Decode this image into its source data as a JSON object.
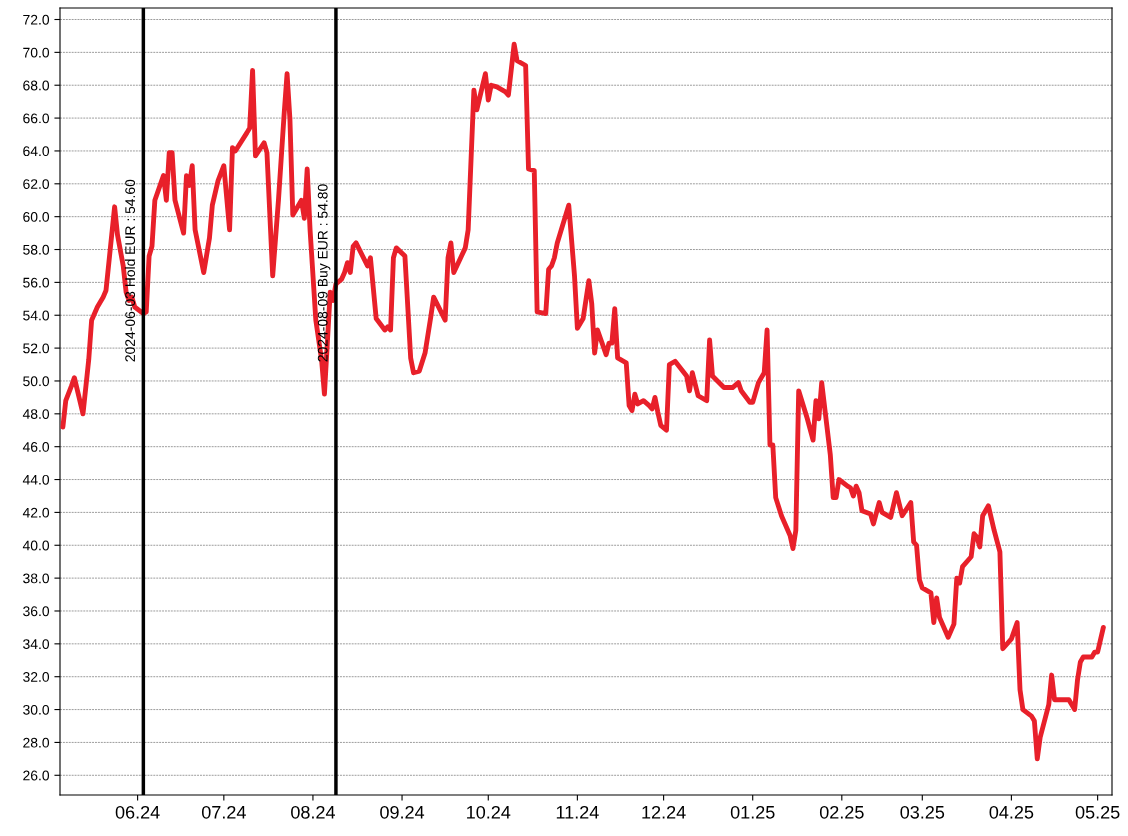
{
  "chart_data": {
    "type": "line",
    "x": [
      "2024-05-06",
      "2024-05-07",
      "2024-05-09",
      "2024-05-10",
      "2024-05-13",
      "2024-05-15",
      "2024-05-16",
      "2024-05-18",
      "2024-05-20",
      "2024-05-21",
      "2024-05-24",
      "2024-05-25",
      "2024-05-27",
      "2024-05-28",
      "2024-05-29",
      "2024-05-30",
      "2024-05-31",
      "2024-06-03",
      "2024-06-04",
      "2024-06-05",
      "2024-06-06",
      "2024-06-07",
      "2024-06-10",
      "2024-06-11",
      "2024-06-12",
      "2024-06-13",
      "2024-06-14",
      "2024-06-17",
      "2024-06-18",
      "2024-06-19",
      "2024-06-20",
      "2024-06-21",
      "2024-06-24",
      "2024-06-26",
      "2024-06-27",
      "2024-06-29",
      "2024-07-01",
      "2024-07-03",
      "2024-07-04",
      "2024-07-05",
      "2024-07-09",
      "2024-07-10",
      "2024-07-11",
      "2024-07-12",
      "2024-07-15",
      "2024-07-16",
      "2024-07-18",
      "2024-07-20",
      "2024-07-22",
      "2024-07-23",
      "2024-07-24",
      "2024-07-25",
      "2024-07-27",
      "2024-07-28",
      "2024-07-29",
      "2024-07-30",
      "2024-07-31",
      "2024-08-02",
      "2024-08-04",
      "2024-08-05",
      "2024-08-07",
      "2024-08-08",
      "2024-08-09",
      "2024-08-11",
      "2024-08-12",
      "2024-08-13",
      "2024-08-14",
      "2024-08-15",
      "2024-08-16",
      "2024-08-20",
      "2024-08-21",
      "2024-08-23",
      "2024-08-26",
      "2024-08-27",
      "2024-08-28",
      "2024-08-29",
      "2024-08-30",
      "2024-09-02",
      "2024-09-04",
      "2024-09-05",
      "2024-09-07",
      "2024-09-09",
      "2024-09-11",
      "2024-09-12",
      "2024-09-16",
      "2024-09-17",
      "2024-09-18",
      "2024-09-19",
      "2024-09-23",
      "2024-09-24",
      "2024-09-26",
      "2024-09-27",
      "2024-09-30",
      "2024-10-01",
      "2024-10-02",
      "2024-10-04",
      "2024-10-07",
      "2024-10-08",
      "2024-10-10",
      "2024-10-11",
      "2024-10-14",
      "2024-10-15",
      "2024-10-17",
      "2024-10-18",
      "2024-10-21",
      "2024-10-22",
      "2024-10-23",
      "2024-10-24",
      "2024-10-25",
      "2024-10-29",
      "2024-10-31",
      "2024-11-01",
      "2024-11-03",
      "2024-11-05",
      "2024-11-06",
      "2024-11-07",
      "2024-11-08",
      "2024-11-11",
      "2024-11-12",
      "2024-11-13",
      "2024-11-14",
      "2024-11-15",
      "2024-11-18",
      "2024-11-19",
      "2024-11-20",
      "2024-11-21",
      "2024-11-22",
      "2024-11-24",
      "2024-11-26",
      "2024-11-27",
      "2024-11-28",
      "2024-11-29",
      "2024-11-30",
      "2024-12-02",
      "2024-12-03",
      "2024-12-05",
      "2024-12-09",
      "2024-12-10",
      "2024-12-11",
      "2024-12-13",
      "2024-12-16",
      "2024-12-17",
      "2024-12-18",
      "2024-12-22",
      "2024-12-25",
      "2024-12-27",
      "2024-12-28",
      "2024-12-31",
      "2025-01-01",
      "2025-01-03",
      "2025-01-05",
      "2025-01-06",
      "2025-01-07",
      "2025-01-08",
      "2025-01-09",
      "2025-01-11",
      "2025-01-14",
      "2025-01-15",
      "2025-01-16",
      "2025-01-17",
      "2025-01-20",
      "2025-01-22",
      "2025-01-23",
      "2025-01-24",
      "2025-01-25",
      "2025-01-28",
      "2025-01-29",
      "2025-01-30",
      "2025-01-31",
      "2025-02-03",
      "2025-02-04",
      "2025-02-05",
      "2025-02-06",
      "2025-02-07",
      "2025-02-08",
      "2025-02-11",
      "2025-02-12",
      "2025-02-14",
      "2025-02-15",
      "2025-02-18",
      "2025-02-20",
      "2025-02-22",
      "2025-02-25",
      "2025-02-26",
      "2025-02-27",
      "2025-02-28",
      "2025-03-01",
      "2025-03-04",
      "2025-03-05",
      "2025-03-06",
      "2025-03-07",
      "2025-03-10",
      "2025-03-12",
      "2025-03-13",
      "2025-03-14",
      "2025-03-15",
      "2025-03-18",
      "2025-03-19",
      "2025-03-20",
      "2025-03-21",
      "2025-03-22",
      "2025-03-24",
      "2025-03-26",
      "2025-03-28",
      "2025-03-29",
      "2025-04-01",
      "2025-04-03",
      "2025-04-04",
      "2025-04-05",
      "2025-04-08",
      "2025-04-09",
      "2025-04-10",
      "2025-04-11",
      "2025-04-14",
      "2025-04-15",
      "2025-04-16",
      "2025-04-20",
      "2025-04-21",
      "2025-04-23",
      "2025-04-24",
      "2025-04-25",
      "2025-04-26",
      "2025-04-29",
      "2025-04-30",
      "2025-05-01",
      "2025-05-03"
    ],
    "series": [
      {
        "color": "#e8202a",
        "values": [
          47.2,
          48.8,
          49.7,
          50.2,
          48.0,
          51.3,
          53.7,
          54.5,
          55.1,
          55.5,
          60.6,
          58.9,
          57.0,
          55.4,
          54.9,
          55.1,
          54.5,
          54.1,
          54.2,
          57.6,
          58.2,
          61.0,
          62.5,
          61.0,
          63.9,
          63.9,
          61.0,
          59.0,
          62.5,
          61.9,
          63.1,
          59.2,
          56.6,
          58.7,
          60.7,
          62.2,
          63.1,
          59.2,
          64.2,
          64.0,
          65.1,
          65.4,
          68.9,
          63.7,
          64.5,
          63.9,
          56.4,
          61.0,
          66.3,
          68.7,
          65.9,
          60.1,
          60.7,
          61.0,
          59.9,
          62.9,
          59.2,
          53.7,
          51.3,
          49.2,
          55.4,
          54.9,
          55.9,
          56.2,
          56.6,
          57.2,
          56.6,
          58.2,
          58.4,
          57.0,
          57.5,
          53.8,
          53.1,
          53.3,
          53.1,
          57.5,
          58.1,
          57.6,
          51.4,
          50.5,
          50.6,
          51.7,
          53.9,
          55.1,
          53.7,
          57.5,
          58.4,
          56.6,
          58.1,
          59.2,
          67.7,
          66.5,
          68.7,
          67.1,
          68.0,
          67.9,
          67.6,
          67.4,
          70.5,
          69.5,
          69.2,
          62.9,
          62.8,
          54.2,
          54.1,
          56.8,
          57.0,
          57.5,
          58.4,
          60.7,
          56.4,
          53.2,
          53.8,
          56.1,
          54.7,
          51.7,
          53.1,
          51.6,
          52.3,
          52.3,
          54.4,
          51.4,
          51.1,
          48.5,
          48.2,
          49.2,
          48.6,
          48.8,
          48.5,
          48.3,
          49.0,
          48.1,
          47.3,
          47.0,
          51.0,
          51.2,
          50.3,
          49.4,
          50.5,
          49.1,
          48.8,
          52.5,
          50.3,
          49.6,
          49.6,
          49.9,
          49.4,
          48.7,
          48.7,
          49.9,
          50.5,
          53.1,
          46.1,
          46.1,
          42.9,
          41.8,
          40.6,
          39.8,
          40.9,
          49.4,
          47.7,
          46.4,
          48.8,
          47.7,
          49.9,
          45.5,
          42.9,
          42.9,
          44.0,
          43.6,
          43.5,
          43.0,
          43.6,
          43.2,
          42.1,
          41.9,
          41.3,
          42.6,
          42.0,
          41.7,
          43.2,
          41.8,
          42.6,
          40.2,
          40.0,
          37.9,
          37.4,
          37.1,
          35.3,
          36.8,
          35.6,
          34.4,
          35.2,
          38.0,
          37.7,
          38.7,
          39.3,
          40.7,
          40.5,
          39.9,
          41.8,
          42.4,
          40.9,
          39.6,
          33.7,
          34.3,
          35.3,
          31.2,
          30.0,
          29.6,
          29.3,
          27.0,
          28.3,
          30.3,
          32.1,
          30.6,
          30.6,
          30.6,
          30.0,
          31.8,
          32.9,
          33.2,
          33.2,
          33.5,
          33.5,
          35.0
        ]
      }
    ],
    "xlim": [
      "2024-05-05",
      "2025-05-06"
    ],
    "xticks": [
      {
        "value": "2024-06-01",
        "label": "06.24"
      },
      {
        "value": "2024-07-01",
        "label": "07.24"
      },
      {
        "value": "2024-08-01",
        "label": "08.24"
      },
      {
        "value": "2024-09-01",
        "label": "09.24"
      },
      {
        "value": "2024-10-01",
        "label": "10.24"
      },
      {
        "value": "2024-11-01",
        "label": "11.24"
      },
      {
        "value": "2024-12-01",
        "label": "12.24"
      },
      {
        "value": "2025-01-01",
        "label": "01.25"
      },
      {
        "value": "2025-02-01",
        "label": "02.25"
      },
      {
        "value": "2025-03-01",
        "label": "03.25"
      },
      {
        "value": "2025-04-01",
        "label": "04.25"
      },
      {
        "value": "2025-05-01",
        "label": "05.25"
      }
    ],
    "ylim": [
      24.8,
      72.7
    ],
    "yticks": [
      {
        "value": 26,
        "label": "26.0"
      },
      {
        "value": 28,
        "label": "28.0"
      },
      {
        "value": 30,
        "label": "30.0"
      },
      {
        "value": 32,
        "label": "32.0"
      },
      {
        "value": 34,
        "label": "34.0"
      },
      {
        "value": 36,
        "label": "36.0"
      },
      {
        "value": 38,
        "label": "38.0"
      },
      {
        "value": 40,
        "label": "40.0"
      },
      {
        "value": 42,
        "label": "42.0"
      },
      {
        "value": 44,
        "label": "44.0"
      },
      {
        "value": 46,
        "label": "46.0"
      },
      {
        "value": 48,
        "label": "48.0"
      },
      {
        "value": 50,
        "label": "50.0"
      },
      {
        "value": 52,
        "label": "52.0"
      },
      {
        "value": 54,
        "label": "54.0"
      },
      {
        "value": 56,
        "label": "56.0"
      },
      {
        "value": 58,
        "label": "58.0"
      },
      {
        "value": 60,
        "label": "60.0"
      },
      {
        "value": 62,
        "label": "62.0"
      },
      {
        "value": 64,
        "label": "64.0"
      },
      {
        "value": 66,
        "label": "66.0"
      },
      {
        "value": 68,
        "label": "68.0"
      },
      {
        "value": 70,
        "label": "70.0"
      },
      {
        "value": 72,
        "label": "72.0"
      }
    ],
    "ref_lines": [
      {
        "axis": "x",
        "value": "2024-06-03",
        "label": "2024-06-03 Hold EUR : 54.60",
        "color": "#000000"
      },
      {
        "axis": "x",
        "value": "2024-08-09",
        "label": "2024-08-09 Buy EUR : 54.80",
        "color": "#000000"
      }
    ],
    "grid": "y",
    "marker": "none",
    "line_style": "solid"
  }
}
